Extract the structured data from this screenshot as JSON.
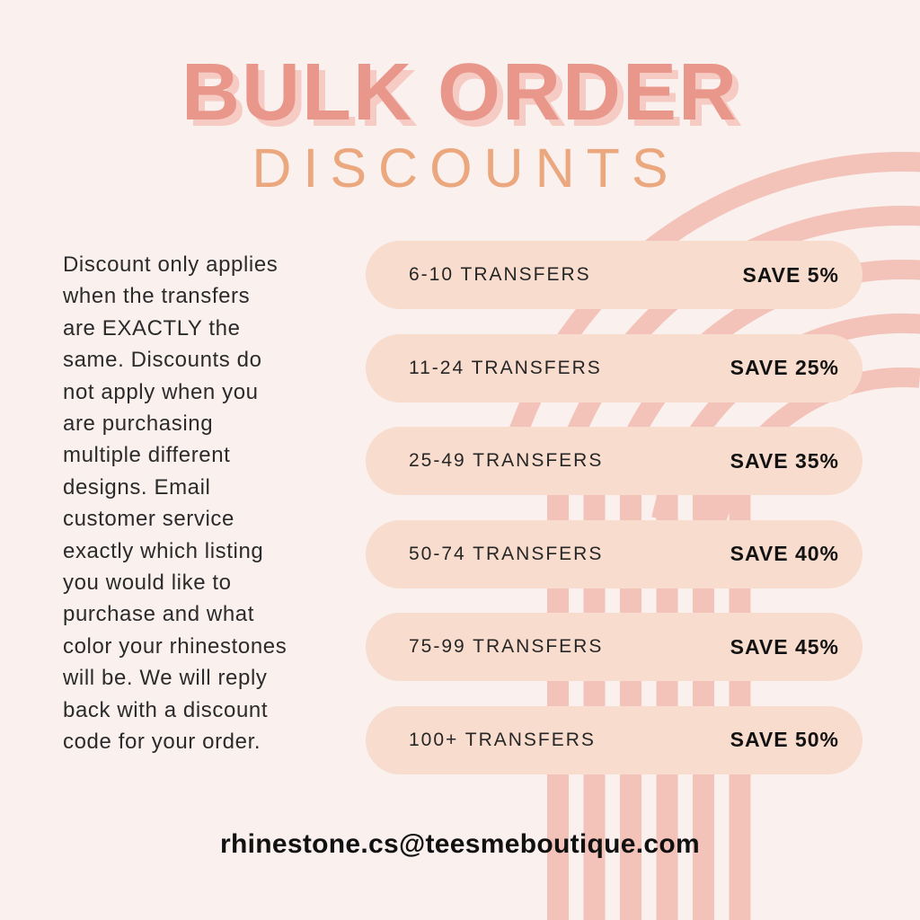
{
  "title": {
    "main": "BULK ORDER",
    "sub": "DISCOUNTS"
  },
  "intro": {
    "lines": [
      "Discount only applies",
      "when the transfers",
      "are EXACTLY the",
      "same. Discounts do",
      "not apply when you",
      "are purchasing",
      "multiple different",
      "designs. Email",
      "customer service",
      "exactly which listing",
      "you would like to",
      "purchase and what",
      "color your rhinestones",
      "will be. We will reply",
      "back with a discount",
      "code for your order."
    ]
  },
  "discounts": {
    "rows": [
      {
        "range": "6-10 TRANSFERS",
        "save": "SAVE 5%"
      },
      {
        "range": "11-24 TRANSFERS",
        "save": "SAVE 25%"
      },
      {
        "range": "25-49 TRANSFERS",
        "save": "SAVE 35%"
      },
      {
        "range": "50-74 TRANSFERS",
        "save": "SAVE 40%"
      },
      {
        "range": "75-99 TRANSFERS",
        "save": "SAVE 45%"
      },
      {
        "range": "100+ TRANSFERS",
        "save": "SAVE 50%"
      }
    ]
  },
  "footer": {
    "email": "rhinestone.cs@teesmeboutique.com"
  },
  "theme": {
    "background": "#faf1ef",
    "title_color": "#e9968b",
    "title_shadow": "#f5cbc4",
    "subtitle_color": "#eba77e",
    "pill_color": "#f8dccd",
    "stripe_color": "#f3c3b9",
    "body_text_color": "#2b2b2b",
    "pill_text_color": "#262626",
    "save_text_color": "#121212",
    "email_color": "#111111"
  }
}
